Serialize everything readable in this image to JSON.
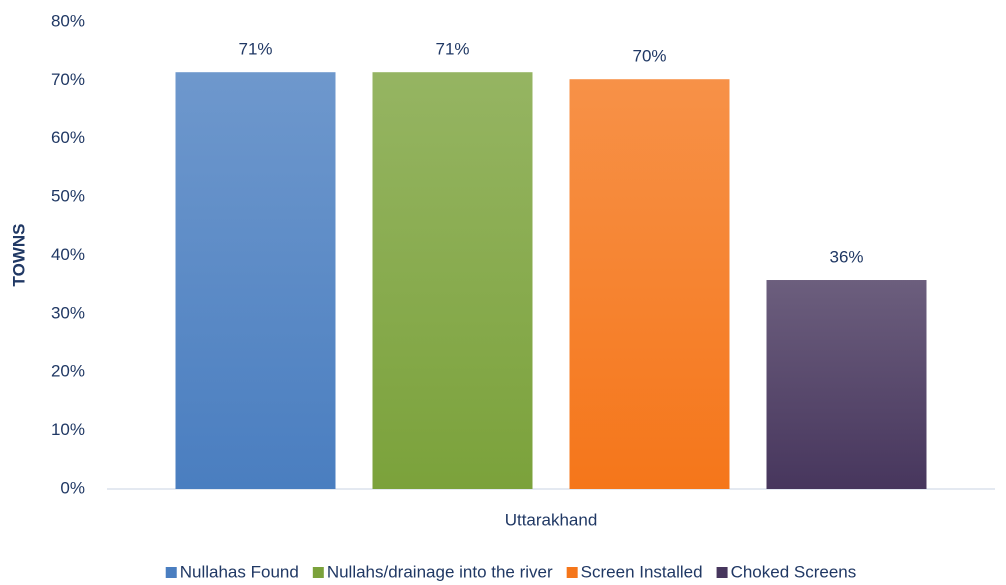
{
  "chart_data": {
    "type": "bar",
    "y_label": "TOWNS",
    "categories": [
      "Uttarakhand"
    ],
    "series": [
      {
        "name": "Nullahas Found",
        "color": "#4a7ec0",
        "values": [
          71.4
        ],
        "value_labels": [
          "71%"
        ]
      },
      {
        "name": "Nullahs/drainage into the river",
        "color": "#7ba23b",
        "values": [
          71.4
        ],
        "value_labels": [
          "71%"
        ]
      },
      {
        "name": "Screen Installed",
        "color": "#f5761a",
        "values": [
          70.2
        ],
        "value_labels": [
          "70%"
        ]
      },
      {
        "name": "Choked Screens",
        "color": "#47365d",
        "values": [
          35.8
        ],
        "value_labels": [
          "36%"
        ]
      }
    ],
    "ylim": [
      0,
      80
    ],
    "yticks": [
      {
        "value": 0,
        "label": "0%"
      },
      {
        "value": 10,
        "label": "10%"
      },
      {
        "value": 20,
        "label": "20%"
      },
      {
        "value": 30,
        "label": "30%"
      },
      {
        "value": 40,
        "label": "40%"
      },
      {
        "value": 50,
        "label": "50%"
      },
      {
        "value": 60,
        "label": "60%"
      },
      {
        "value": 70,
        "label": "70%"
      },
      {
        "value": 80,
        "label": "80%"
      }
    ],
    "grid": false,
    "legend": "bottom"
  }
}
